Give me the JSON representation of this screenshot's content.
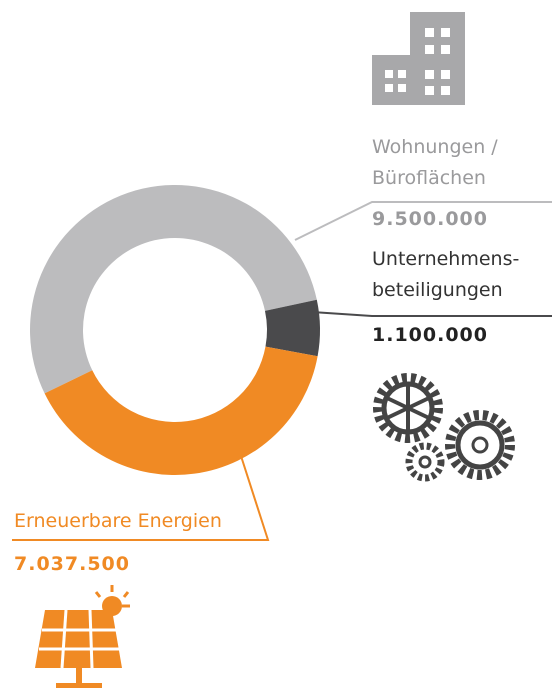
{
  "chart_data": {
    "type": "donut",
    "categories": [
      "Wohnungen / Büroflächen",
      "Unternehmens-beteiligungen",
      "Erneuerbare Energien"
    ],
    "values": [
      9500000,
      1100000,
      7037500
    ],
    "value_labels": [
      "9.500.000",
      "1.100.000",
      "7.037.500"
    ],
    "colors": [
      "#bcbcbe",
      "#4a4a4c",
      "#f08a24"
    ]
  }
}
